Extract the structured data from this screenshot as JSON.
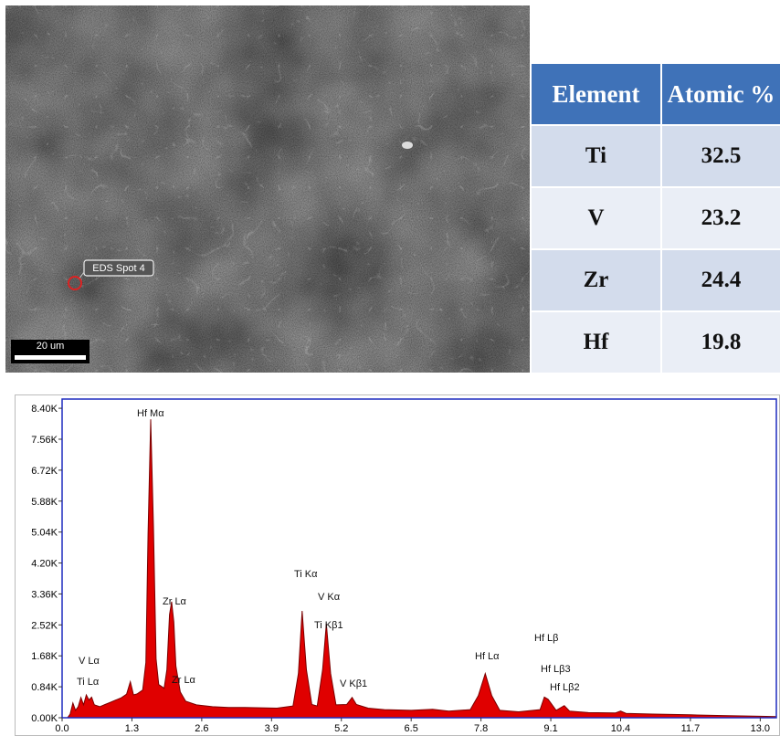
{
  "image": {
    "spot_label": "EDS Spot 4",
    "scale_label": "20 um"
  },
  "table": {
    "header": [
      "Element",
      "Atomic %"
    ],
    "rows": [
      [
        "Ti",
        "32.5"
      ],
      [
        "V",
        "23.2"
      ],
      [
        "Zr",
        "24.4"
      ],
      [
        "Hf",
        "19.8"
      ]
    ]
  },
  "chart_data": {
    "type": "area",
    "color": "#e00000",
    "x": [
      0.0,
      0.1,
      0.15,
      0.2,
      0.25,
      0.3,
      0.35,
      0.4,
      0.45,
      0.5,
      0.55,
      0.6,
      0.7,
      0.8,
      0.9,
      1.0,
      1.1,
      1.2,
      1.27,
      1.33,
      1.4,
      1.5,
      1.56,
      1.6,
      1.65,
      1.7,
      1.75,
      1.8,
      1.85,
      1.9,
      1.95,
      2.0,
      2.04,
      2.08,
      2.12,
      2.2,
      2.3,
      2.5,
      2.8,
      3.1,
      3.4,
      3.7,
      4.0,
      4.3,
      4.4,
      4.47,
      4.55,
      4.65,
      4.75,
      4.85,
      4.92,
      5.0,
      5.1,
      5.3,
      5.4,
      5.48,
      5.7,
      6.0,
      6.5,
      6.9,
      7.2,
      7.6,
      7.75,
      7.88,
      8.0,
      8.15,
      8.5,
      8.9,
      8.98,
      9.05,
      9.2,
      9.35,
      9.45,
      9.8,
      10.3,
      10.4,
      10.5,
      11.0,
      11.7,
      12.3,
      13.0,
      13.3
    ],
    "values": [
      0,
      0,
      100,
      400,
      200,
      300,
      550,
      350,
      620,
      480,
      560,
      350,
      300,
      360,
      420,
      480,
      540,
      640,
      980,
      620,
      650,
      750,
      1500,
      5000,
      8100,
      5200,
      1600,
      900,
      850,
      800,
      1300,
      2800,
      3150,
      2600,
      1400,
      700,
      450,
      350,
      300,
      280,
      280,
      270,
      260,
      320,
      1200,
      2900,
      1300,
      360,
      320,
      1300,
      2550,
      1200,
      350,
      360,
      550,
      360,
      260,
      220,
      200,
      230,
      180,
      220,
      600,
      1200,
      600,
      200,
      160,
      220,
      560,
      500,
      200,
      330,
      180,
      140,
      130,
      180,
      120,
      100,
      80,
      60,
      40,
      30
    ],
    "xlim": [
      0,
      13.3
    ],
    "ylim": [
      0,
      8650
    ],
    "xticks": [
      {
        "value": 0,
        "label": "0.0"
      },
      1.3,
      2.6,
      3.9,
      5.2,
      6.5,
      7.8,
      9.1,
      10.4,
      11.7,
      {
        "value": 13,
        "label": "13.0"
      }
    ],
    "yticks": [
      {
        "value": 0,
        "label": "0.00K"
      },
      {
        "value": 840,
        "label": "0.84K"
      },
      {
        "value": 1680,
        "label": "1.68K"
      },
      {
        "value": 2520,
        "label": "2.52K"
      },
      {
        "value": 3360,
        "label": "3.36K"
      },
      {
        "value": 4200,
        "label": "4.20K"
      },
      {
        "value": 5040,
        "label": "5.04K"
      },
      {
        "value": 5880,
        "label": "5.88K"
      },
      {
        "value": 6720,
        "label": "6.72K"
      },
      {
        "value": 7560,
        "label": "7.56K"
      },
      {
        "value": 8400,
        "label": "8.40K"
      }
    ],
    "annotations": [
      "Hf Mα",
      "Zr Lα",
      "Ti Kα",
      "V  Kα",
      "Ti Kβ1",
      "V Lα",
      "Ti Lα",
      "Zr Lα",
      "V  Kβ1",
      "Hf Lα",
      "Hf Lβ",
      "Hf Lβ3",
      "Hf Lβ2"
    ]
  }
}
